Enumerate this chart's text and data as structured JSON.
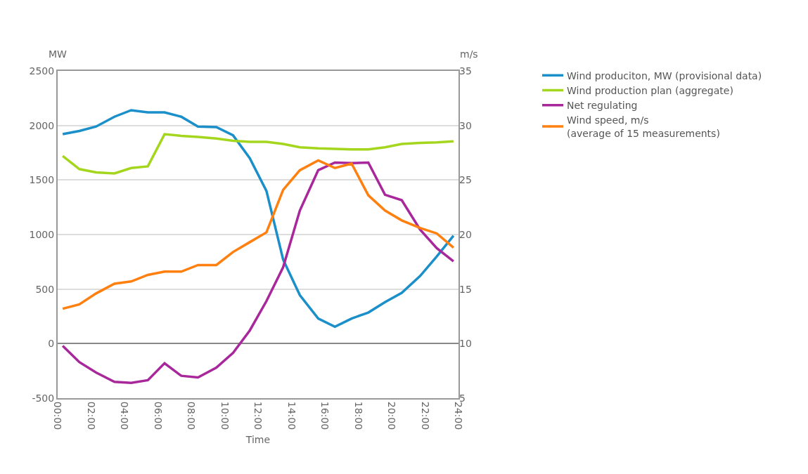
{
  "chart_data": {
    "type": "line",
    "xlabel": "Time",
    "ylabel": "MW",
    "y2label": "m/s",
    "x": [
      0.3,
      1.3,
      2.3,
      3.4,
      4.4,
      5.4,
      6.4,
      7.4,
      8.4,
      9.5,
      10.5,
      11.5,
      12.5,
      13.5,
      14.5,
      15.6,
      16.6,
      17.6,
      18.6,
      19.6,
      20.6,
      21.7,
      22.7,
      23.7
    ],
    "xlim": [
      0,
      24
    ],
    "xticks": [
      {
        "value": 0,
        "label": "00:00"
      },
      {
        "value": 2,
        "label": "02:00"
      },
      {
        "value": 4,
        "label": "04:00"
      },
      {
        "value": 6,
        "label": "06:00"
      },
      {
        "value": 8,
        "label": "08:00"
      },
      {
        "value": 10,
        "label": "10:00"
      },
      {
        "value": 12,
        "label": "12:00"
      },
      {
        "value": 14,
        "label": "14:00"
      },
      {
        "value": 16,
        "label": "16:00"
      },
      {
        "value": 18,
        "label": "18:00"
      },
      {
        "value": 20,
        "label": "20:00"
      },
      {
        "value": 22,
        "label": "22:00"
      },
      {
        "value": 24,
        "label": "24:00"
      }
    ],
    "ylim": [
      -500,
      2500
    ],
    "yticks": [
      -500,
      0,
      500,
      1000,
      1500,
      2000,
      2500
    ],
    "y2lim": [
      5,
      35
    ],
    "y2ticks": [
      5,
      10,
      15,
      20,
      25,
      30,
      35
    ],
    "grid": "y",
    "legend": "right",
    "marker": "none",
    "line_style": "solid",
    "series": [
      {
        "name": "Wind produciton, MW (provisional data)",
        "color": "#1a8fc9",
        "values": [
          1920,
          1950,
          1990,
          2080,
          2140,
          2120,
          2120,
          2080,
          1990,
          1985,
          1910,
          1700,
          1400,
          770,
          445,
          230,
          155,
          230,
          285,
          380,
          465,
          620,
          800,
          990
        ]
      },
      {
        "name": "Wind production plan (aggregate)",
        "color": "#a5d61e",
        "values": [
          1720,
          1600,
          1570,
          1560,
          1610,
          1625,
          1920,
          1905,
          1895,
          1880,
          1860,
          1850,
          1850,
          1830,
          1800,
          1790,
          1785,
          1780,
          1780,
          1800,
          1830,
          1840,
          1845,
          1855
        ]
      },
      {
        "name": "Net regulating",
        "color": "#a8289c",
        "values": [
          -20,
          -170,
          -265,
          -350,
          -360,
          -335,
          -180,
          -295,
          -310,
          -220,
          -85,
          120,
          390,
          700,
          1220,
          1590,
          1660,
          1655,
          1660,
          1365,
          1315,
          1045,
          875,
          755
        ]
      },
      {
        "name": "Wind speed, m/s\n(average of 15 measurements)",
        "color": "#ff7f0f",
        "axis": "y2",
        "values": [
          13.2,
          13.6,
          14.6,
          15.5,
          15.7,
          16.3,
          16.6,
          16.6,
          17.2,
          17.2,
          18.4,
          19.3,
          20.2,
          24.1,
          25.9,
          26.8,
          26.1,
          26.5,
          23.6,
          22.2,
          21.3,
          20.6,
          20.1,
          18.8
        ]
      }
    ]
  }
}
